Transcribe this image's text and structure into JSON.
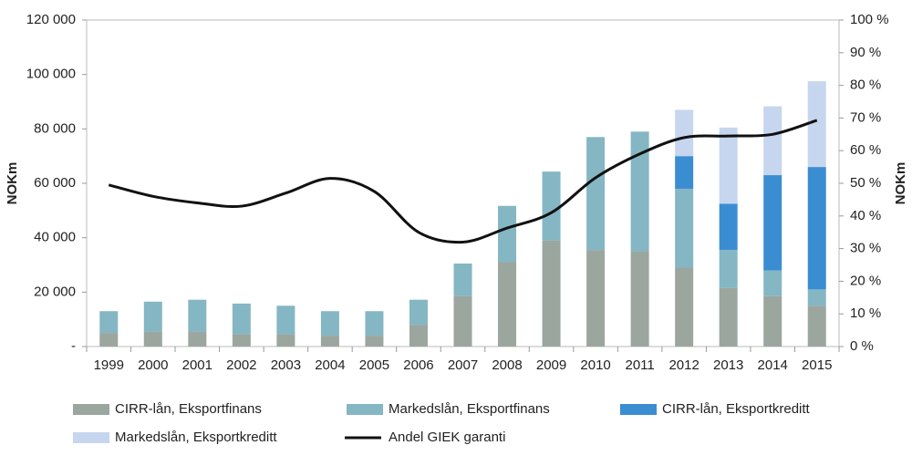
{
  "chart_data": {
    "type": "stacked_bar_line",
    "y_label": "NOKm",
    "y2_label": "NOKm",
    "categories": [
      "1999",
      "2000",
      "2001",
      "2002",
      "2003",
      "2004",
      "2005",
      "2006",
      "2007",
      "2008",
      "2009",
      "2010",
      "2011",
      "2012",
      "2013",
      "2014",
      "2015"
    ],
    "series": [
      {
        "name": "CIRR-lån, Eksportfinans",
        "color": "#9ba69f",
        "kind": "bar",
        "values": [
          5000,
          5500,
          5500,
          4500,
          4500,
          4000,
          4000,
          8000,
          18500,
          31000,
          39000,
          35500,
          35000,
          29000,
          21500,
          18500,
          15000
        ]
      },
      {
        "name": "Markedslån, Eksportfinans",
        "color": "#85b6c3",
        "kind": "bar",
        "values": [
          8000,
          11000,
          11700,
          11300,
          10500,
          9000,
          9000,
          9200,
          12000,
          20700,
          25300,
          41500,
          44000,
          29000,
          14000,
          9500,
          6000
        ]
      },
      {
        "name": "CIRR-lån, Eksportkreditt",
        "color": "#3b8dd2",
        "kind": "bar",
        "values": [
          null,
          null,
          null,
          null,
          null,
          null,
          null,
          null,
          null,
          null,
          null,
          null,
          null,
          12000,
          17000,
          35000,
          45000
        ]
      },
      {
        "name": "Markedslån, Eksportkreditt",
        "color": "#c6d6ee",
        "kind": "bar",
        "values": [
          null,
          null,
          null,
          null,
          null,
          null,
          null,
          null,
          null,
          null,
          null,
          null,
          null,
          17000,
          28000,
          25300,
          31500
        ]
      },
      {
        "name": "Andel GIEK garanti",
        "color": "#111111",
        "kind": "line",
        "axis": "y2",
        "values": [
          49.5,
          46,
          44,
          43,
          47,
          51.5,
          47.5,
          35,
          32,
          36.3,
          41,
          51.7,
          59,
          64,
          64.5,
          65,
          69.3
        ]
      }
    ],
    "ylim": [
      0,
      120000
    ],
    "yticks": [
      {
        "value": 0,
        "label": "-"
      },
      {
        "value": 20000,
        "label": "20 000"
      },
      {
        "value": 40000,
        "label": "40 000"
      },
      {
        "value": 60000,
        "label": "60 000"
      },
      {
        "value": 80000,
        "label": "80 000"
      },
      {
        "value": 100000,
        "label": "100 000"
      },
      {
        "value": 120000,
        "label": "120 000"
      }
    ],
    "y2lim": [
      0,
      100
    ],
    "y2ticks": [
      {
        "value": 0,
        "label": "0 %"
      },
      {
        "value": 10,
        "label": "10 %"
      },
      {
        "value": 20,
        "label": "20 %"
      },
      {
        "value": 30,
        "label": "30 %"
      },
      {
        "value": 40,
        "label": "40 %"
      },
      {
        "value": 50,
        "label": "50 %"
      },
      {
        "value": 60,
        "label": "60 %"
      },
      {
        "value": 70,
        "label": "70 %"
      },
      {
        "value": 80,
        "label": "80 %"
      },
      {
        "value": 90,
        "label": "90 %"
      },
      {
        "value": 100,
        "label": "100 %"
      }
    ],
    "grid": false
  }
}
